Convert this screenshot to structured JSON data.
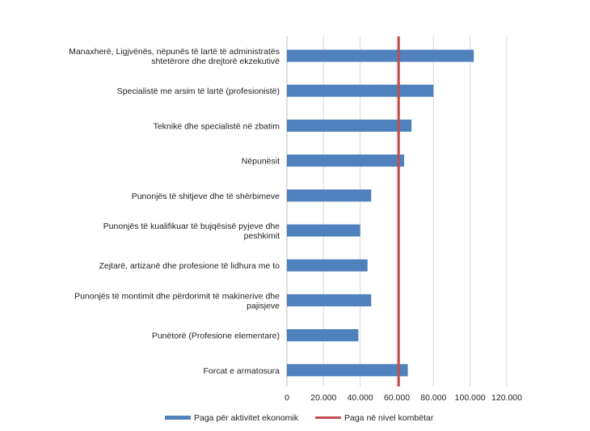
{
  "chart_data": {
    "type": "bar",
    "orientation": "horizontal",
    "categories": [
      [
        "Manaxherë, Ligjvënës, nëpunës të lartë të administratës",
        "shtetërore dhe drejtorë ekzekutivë"
      ],
      [
        "Specialistë me arsim të lartë (profesionistë)"
      ],
      [
        "Teknikë dhe specialistë në zbatim"
      ],
      [
        "Nëpunësit"
      ],
      [
        "Punonjës të shitjeve dhe të shërbimeve"
      ],
      [
        "Punonjës të kualifikuar të bujqësisë pyjeve dhe",
        "peshkimit"
      ],
      [
        "Zejtarë, artizanë dhe profesione të lidhura me to"
      ],
      [
        "Punonjës të montimit dhe përdorimit të makinerive dhe",
        "pajisjeve"
      ],
      [
        "Punëtorë (Profesione elementare)"
      ],
      [
        "Forcat e armatosura"
      ]
    ],
    "series": [
      {
        "name": "Paga për aktivitet ekonomik",
        "values": [
          102000,
          80000,
          68000,
          64000,
          46000,
          40000,
          44000,
          46000,
          39000,
          66000
        ]
      }
    ],
    "reference_line": {
      "name": "Paga në nivel kombëtar",
      "value": 61000
    },
    "xlim": [
      0,
      120000
    ],
    "xticks": [
      0,
      20000,
      40000,
      60000,
      80000,
      100000,
      120000
    ],
    "xtick_labels": [
      "0",
      "20.000",
      "40.000",
      "60.000",
      "80.000",
      "100.000",
      "120.000"
    ],
    "grid": "vertical",
    "legend": "bottom",
    "colors": {
      "bar": "#4F81BD",
      "reference": "#C0504D",
      "grid": "#D9D9D9"
    }
  }
}
